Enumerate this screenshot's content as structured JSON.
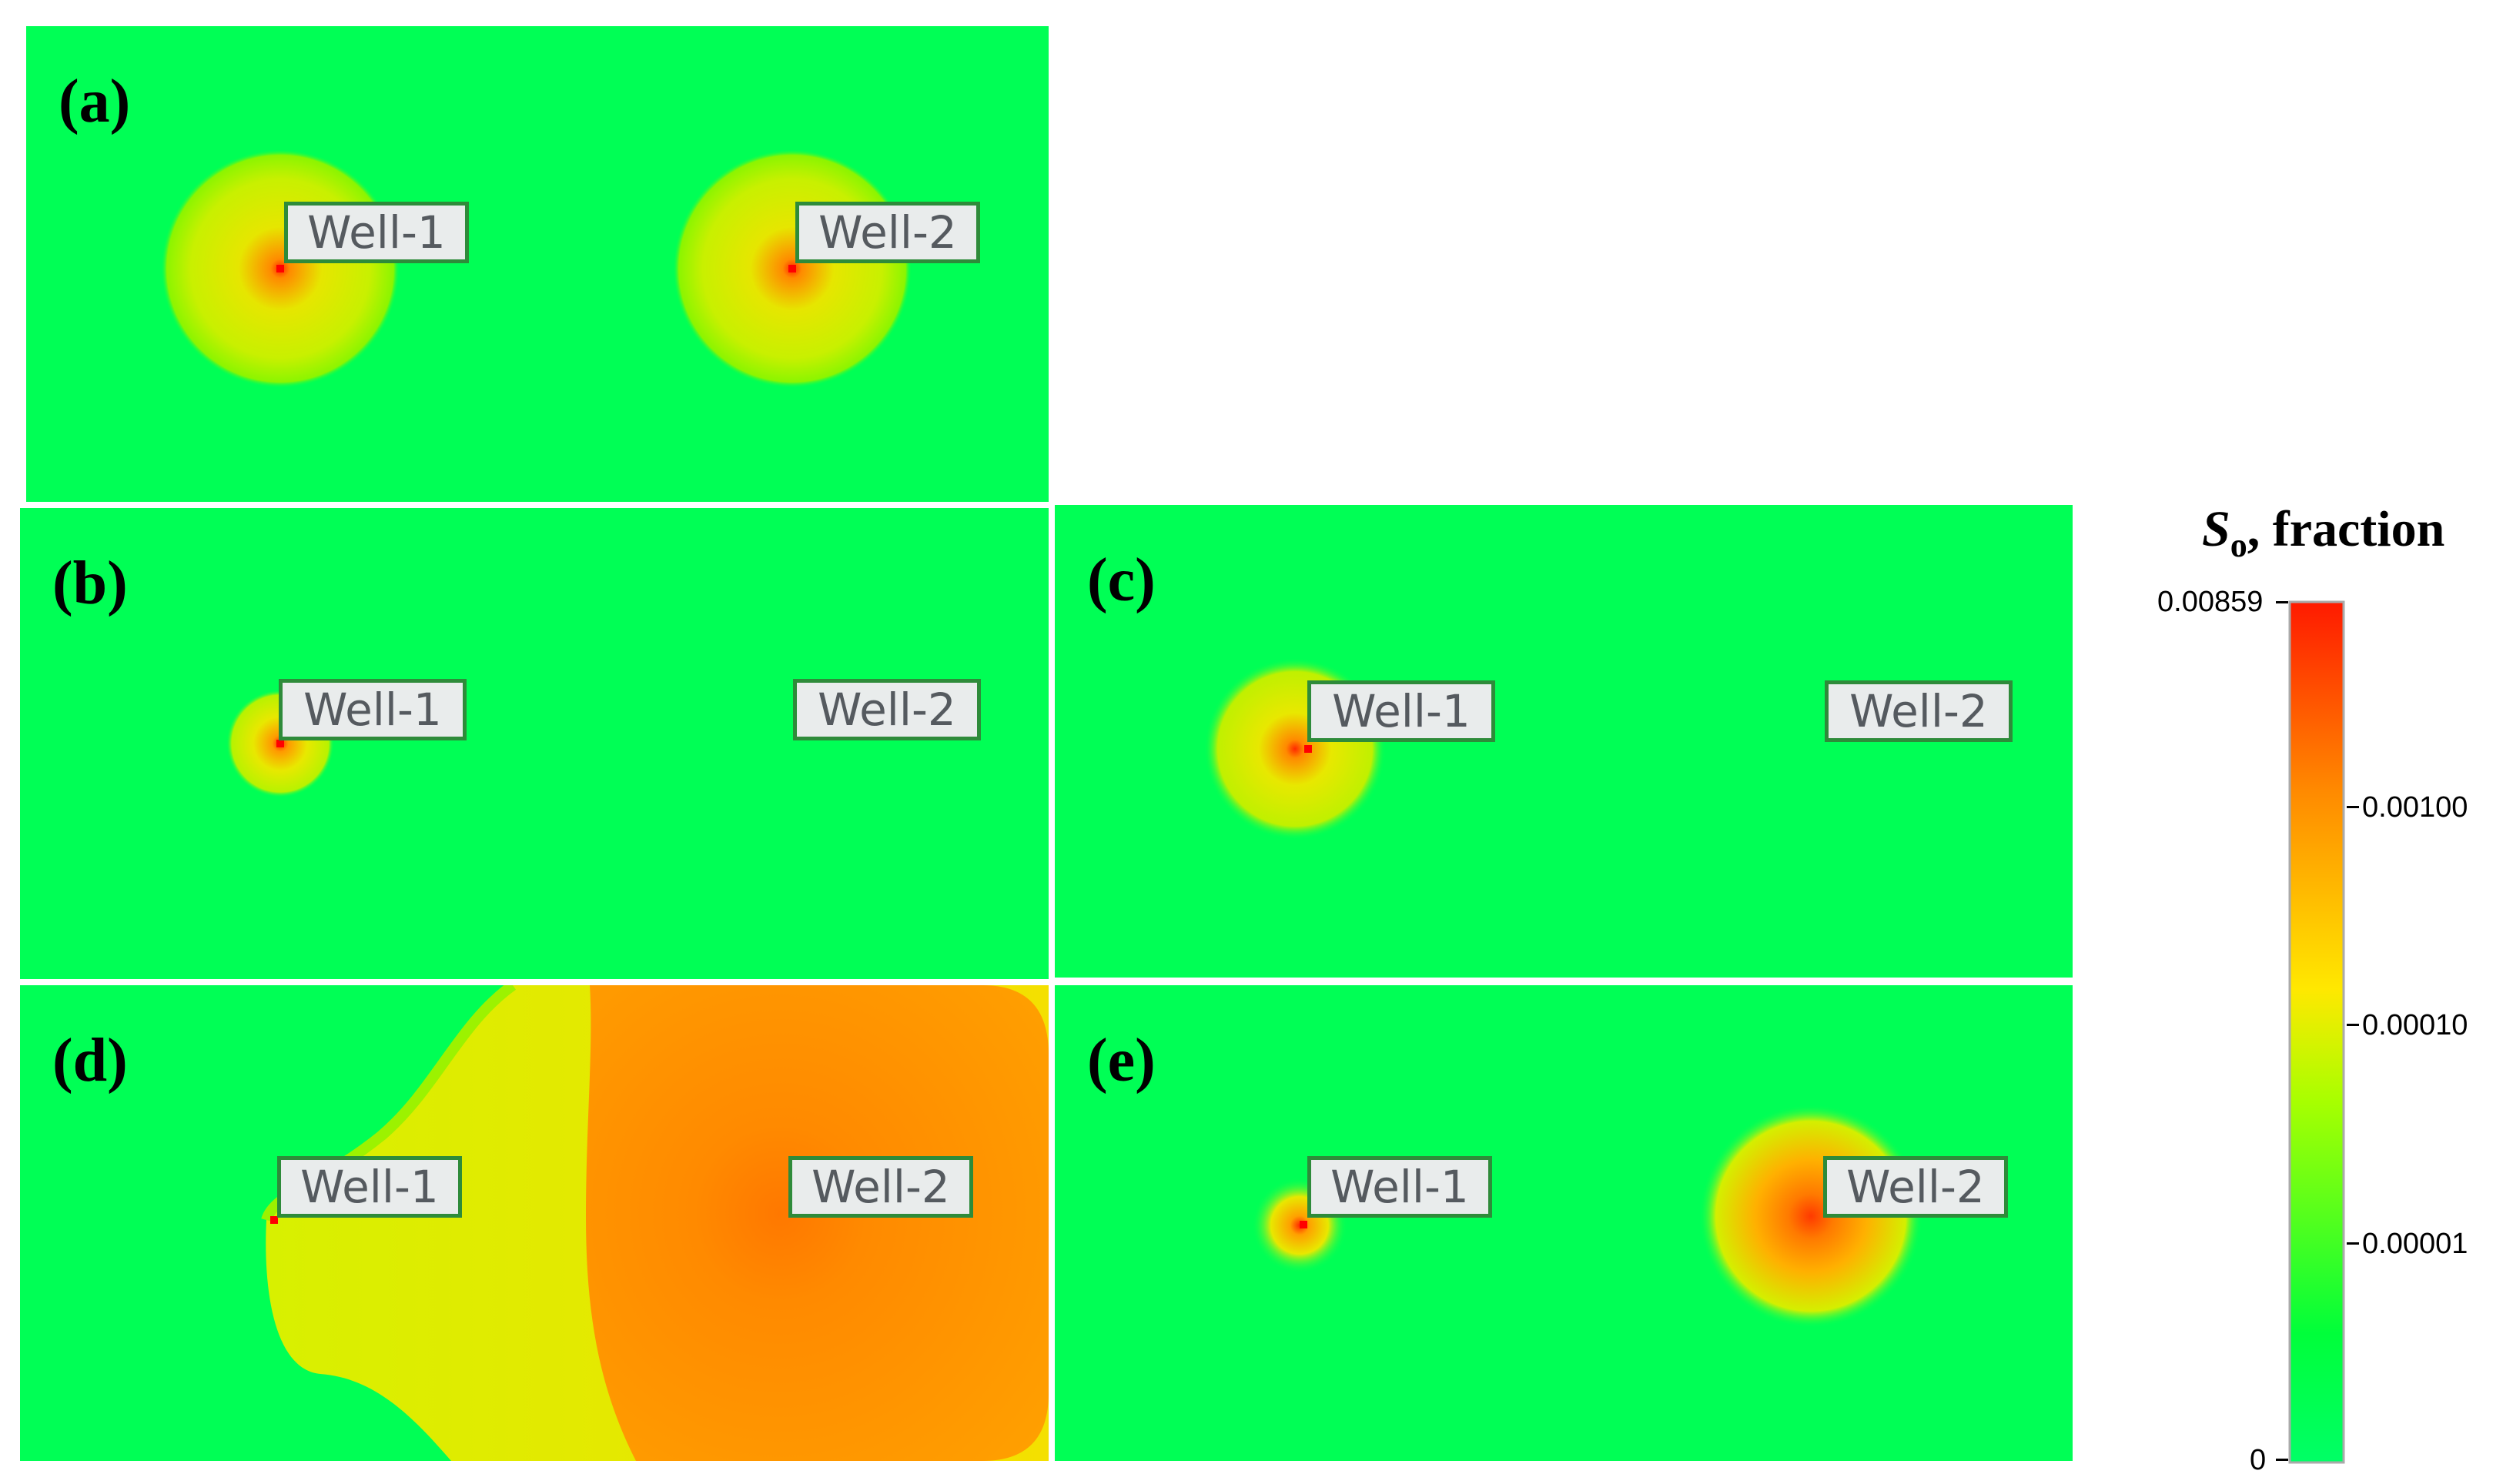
{
  "panels": [
    {
      "id": "a",
      "label": "(a)",
      "wells": [
        "Well-1",
        "Well-2"
      ]
    },
    {
      "id": "b",
      "label": "(b)",
      "wells": [
        "Well-1",
        "Well-2"
      ]
    },
    {
      "id": "c",
      "label": "(c)",
      "wells": [
        "Well-1",
        "Well-2"
      ]
    },
    {
      "id": "d",
      "label": "(d)",
      "wells": [
        "Well-1",
        "Well-2"
      ]
    },
    {
      "id": "e",
      "label": "(e)",
      "wells": [
        "Well-1",
        "Well-2"
      ]
    }
  ],
  "colorbar": {
    "title_symbol": "S",
    "title_subscript": "o",
    "title_rest": ", fraction",
    "scale": "log",
    "max_label": "0.00859",
    "min_label": "0",
    "ticks": [
      "0.00100",
      "0.00010",
      "0.00001"
    ],
    "colors": [
      "#ff1a00",
      "#ff8a00",
      "#ffe800",
      "#a8ff00",
      "#00ff3a",
      "#00ff66"
    ]
  }
}
